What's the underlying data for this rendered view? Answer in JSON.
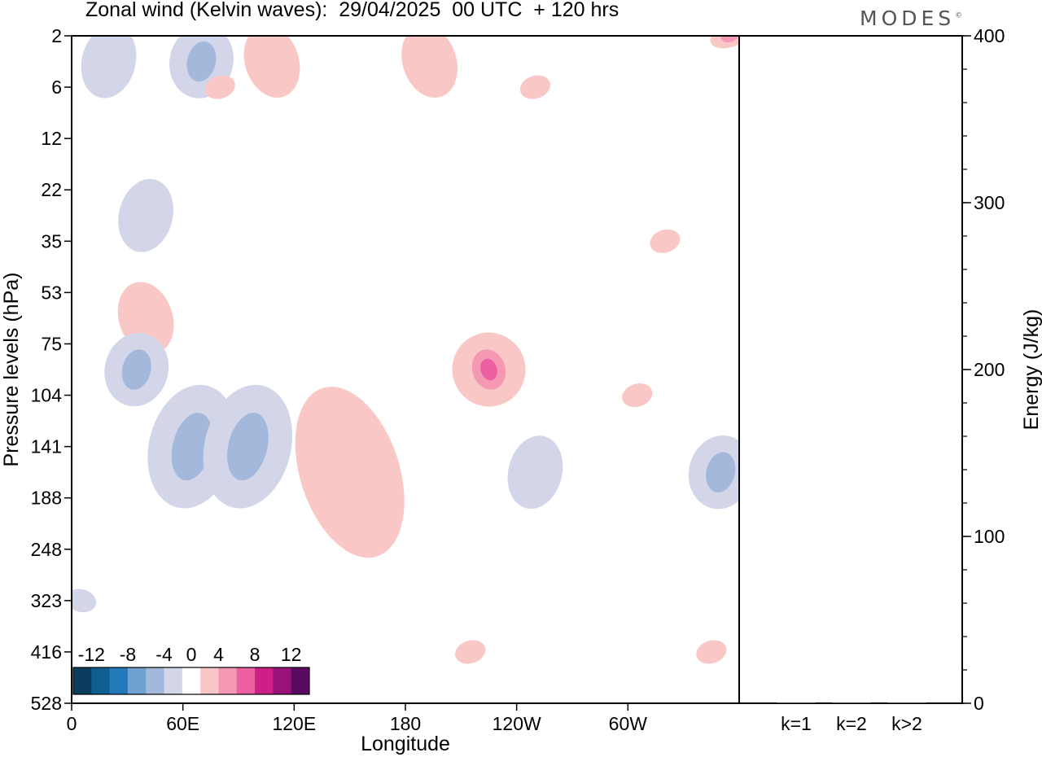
{
  "title": "Zonal wind (Kelvin waves):  29/04/2025  00 UTC  + 120 hrs",
  "logo": "MODES",
  "logo_mark": "©",
  "colors": {
    "neg": [
      "#0b3d5c",
      "#0f5f93",
      "#2479b8",
      "#6fa2cf",
      "#a3b8da",
      "#d2d6e8"
    ],
    "zero": "#ffffff",
    "pos": [
      "#f9c8c6",
      "#f498b4",
      "#ec5fa0",
      "#cc1f87",
      "#98127a",
      "#5b0a63"
    ]
  },
  "chart_data": [
    {
      "type": "heatmap",
      "title": "Zonal wind (Kelvin waves):  29/04/2025  00 UTC  + 120 hrs",
      "xlabel": "Longitude",
      "ylabel": "Pressure levels (hPa)",
      "x_ticks": [
        "0",
        "60E",
        "120E",
        "180",
        "120W",
        "60W"
      ],
      "x_tick_values": [
        0,
        60,
        120,
        180,
        240,
        300
      ],
      "xlim": [
        0,
        360
      ],
      "y_ticks": [
        "2",
        "6",
        "12",
        "22",
        "35",
        "53",
        "75",
        "104",
        "141",
        "188",
        "248",
        "323",
        "416",
        "528"
      ],
      "y_scale": "model levels (irregular)",
      "colorbar": {
        "tick_labels": [
          "-12",
          "-8",
          "-4",
          "0",
          "4",
          "8",
          "12"
        ],
        "tick_values": [
          -12,
          -8,
          -4,
          0,
          4,
          8,
          12
        ],
        "boundaries": [
          -14,
          -12,
          -10,
          -8,
          -6,
          -4,
          -2,
          2,
          4,
          6,
          8,
          10,
          12,
          14
        ]
      },
      "features": [
        {
          "lon": 20,
          "level": "2-6",
          "value": -3
        },
        {
          "lon": 70,
          "level": "2-6",
          "value": -5
        },
        {
          "lon": 80,
          "level": "6",
          "value": 3
        },
        {
          "lon": 108,
          "level": "2-6",
          "value": 3
        },
        {
          "lon": 193,
          "level": "2-6",
          "value": 3
        },
        {
          "lon": 250,
          "level": "6",
          "value": 3
        },
        {
          "lon": 355,
          "level": "2",
          "value": 5
        },
        {
          "lon": 40,
          "level": "22-35",
          "value": -3
        },
        {
          "lon": 320,
          "level": "35",
          "value": 3
        },
        {
          "lon": 40,
          "level": "53-75",
          "value": 3
        },
        {
          "lon": 35,
          "level": "75-104",
          "value": -5
        },
        {
          "lon": 65,
          "level": "104-188",
          "value": -5
        },
        {
          "lon": 95,
          "level": "104-188",
          "value": -5
        },
        {
          "lon": 150,
          "level": "104-248",
          "value": 3
        },
        {
          "lon": 225,
          "level": "75-104",
          "value": 7
        },
        {
          "lon": 250,
          "level": "141-188",
          "value": -3
        },
        {
          "lon": 305,
          "level": "104",
          "value": 3
        },
        {
          "lon": 350,
          "level": "141-188",
          "value": -5
        },
        {
          "lon": 215,
          "level": "416",
          "value": 3
        },
        {
          "lon": 345,
          "level": "416",
          "value": 3
        },
        {
          "lon": 5,
          "level": "323",
          "value": -3
        }
      ]
    },
    {
      "type": "bar",
      "ylabel": "Energy (J/kg)",
      "categories": [
        "k=1",
        "k=2",
        "k>2"
      ],
      "values": [
        0,
        0,
        0
      ],
      "ylim": [
        0,
        400
      ],
      "y_ticks": [
        "0",
        "100",
        "200",
        "300",
        "400"
      ],
      "y_tick_values": [
        0,
        100,
        200,
        300,
        400
      ],
      "y_minor_step": 20
    }
  ]
}
